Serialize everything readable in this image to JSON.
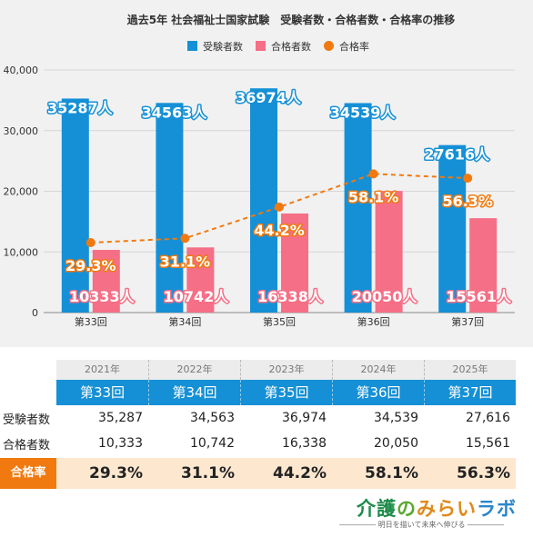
{
  "chart_data": {
    "type": "bar",
    "title": "過去5年 社会福祉士国家試験　受験者数・合格者数・合格率の推移",
    "categories": [
      "第33回",
      "第34回",
      "第35回",
      "第36回",
      "第37回"
    ],
    "series": [
      {
        "name": "受験者数",
        "type": "bar",
        "color": "#1590d6",
        "values": [
          35287,
          34563,
          36974,
          34539,
          27616
        ],
        "labels": [
          "35287人",
          "34563人",
          "36974人",
          "34539人",
          "27616人"
        ]
      },
      {
        "name": "合格者数",
        "type": "bar",
        "color": "#f56f86",
        "values": [
          10333,
          10742,
          16338,
          20050,
          15561
        ],
        "labels": [
          "10333人",
          "10742人",
          "16338人",
          "20050人",
          "15561人"
        ]
      },
      {
        "name": "合格率",
        "type": "line",
        "color": "#f07a10",
        "values": [
          29.3,
          31.1,
          44.2,
          58.1,
          56.3
        ],
        "labels": [
          "29.3%",
          "31.1%",
          "44.2%",
          "58.1%",
          "56.3%"
        ]
      }
    ],
    "y_ticks": [
      "0",
      "10,000",
      "20,000",
      "30,000",
      "40,000"
    ],
    "ylim": [
      0,
      40000
    ],
    "grid": true,
    "legend_position": "top-center"
  },
  "table": {
    "years": [
      "2021年",
      "2022年",
      "2023年",
      "2024年",
      "2025年"
    ],
    "rounds": [
      "第33回",
      "第34回",
      "第35回",
      "第36回",
      "第37回"
    ],
    "examinees_label": "受験者数",
    "examinees": [
      "35,287",
      "34,563",
      "36,974",
      "34,539",
      "27,616"
    ],
    "passers_label": "合格者数",
    "passers": [
      "10,333",
      "10,742",
      "16,338",
      "20,050",
      "15,561"
    ],
    "rate_label": "合格率",
    "rates": [
      "29.3%",
      "31.1%",
      "44.2%",
      "58.1%",
      "56.3%"
    ]
  },
  "brand": {
    "part1": "介護",
    "part2": "の",
    "part3": "みらい",
    "part4": "ラボ",
    "tagline": "――――― 明日を描いて未来へ伸びる ―――――"
  }
}
